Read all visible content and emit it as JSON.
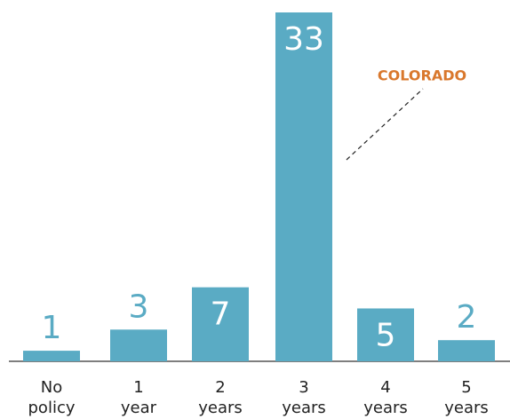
{
  "chart_data": {
    "type": "bar",
    "categories": [
      [
        "No",
        "policy"
      ],
      [
        "1",
        "year"
      ],
      [
        "2",
        "years"
      ],
      [
        "3",
        "years"
      ],
      [
        "4",
        "years"
      ],
      [
        "5",
        "years"
      ]
    ],
    "values": [
      1,
      3,
      7,
      33,
      5,
      2
    ],
    "color": "#5aabc4",
    "annotation": "COLORADO",
    "annotation_color": "#d9782d"
  }
}
